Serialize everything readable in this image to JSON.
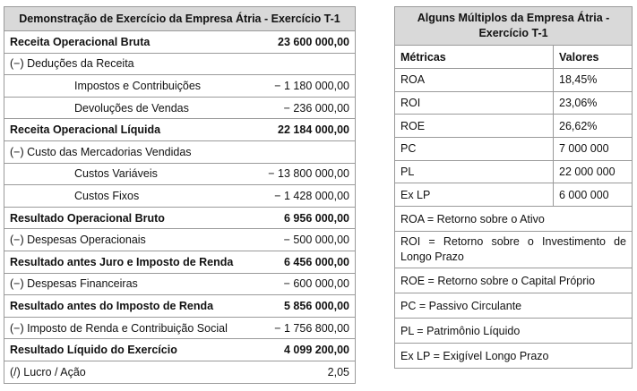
{
  "income_statement": {
    "title": "Demonstração de Exercício da Empresa Átria - Exercício T-1",
    "rows": [
      {
        "label": "Receita Operacional Bruta",
        "value": "23 600 000,00"
      },
      {
        "label": "(−) Deduções da Receita",
        "value": ""
      },
      {
        "label": "Impostos e Contribuições",
        "value": "− 1 180 000,00"
      },
      {
        "label": "Devoluções de Vendas",
        "value": "− 236 000,00"
      },
      {
        "label": "Receita Operacional Líquida",
        "value": "22 184 000,00"
      },
      {
        "label": "(−) Custo das Mercadorias Vendidas",
        "value": ""
      },
      {
        "label": "Custos Variáveis",
        "value": "− 13 800 000,00"
      },
      {
        "label": "Custos Fixos",
        "value": "− 1 428 000,00"
      },
      {
        "label": "Resultado Operacional Bruto",
        "value": "6 956 000,00"
      },
      {
        "label": "(−) Despesas Operacionais",
        "value": "− 500 000,00"
      },
      {
        "label": "Resultado antes Juro e Imposto de Renda",
        "value": "6 456 000,00"
      },
      {
        "label": "(−) Despesas Financeiras",
        "value": "− 600 000,00"
      },
      {
        "label": "Resultado antes do Imposto de Renda",
        "value": "5 856 000,00"
      },
      {
        "label": "(−) Imposto de Renda e Contribuição Social",
        "value": "− 1 756 800,00"
      },
      {
        "label": "Resultado Líquido do Exercício",
        "value": "4 099 200,00"
      },
      {
        "label": "(/) Lucro / Ação",
        "value": "2,05"
      }
    ]
  },
  "metrics": {
    "title": "Alguns Múltiplos da Empresa Átria - Exercício T-1",
    "col_metric": "Métricas",
    "col_value": "Valores",
    "rows": [
      {
        "metric": "ROA",
        "value": "18,45%"
      },
      {
        "metric": "ROI",
        "value": "23,06%"
      },
      {
        "metric": "ROE",
        "value": "26,62%"
      },
      {
        "metric": "PC",
        "value": "7 000 000"
      },
      {
        "metric": "PL",
        "value": "22 000 000"
      },
      {
        "metric": "Ex LP",
        "value": "6 000 000"
      }
    ],
    "definitions": [
      "ROA = Retorno sobre o Ativo",
      "ROI = Retorno sobre o Investimento de Longo Prazo",
      "ROE = Retorno sobre o Capital Próprio",
      "PC = Passivo Circulante",
      "PL = Patrimônio Líquido",
      "Ex LP = Exigível Longo Prazo"
    ]
  }
}
